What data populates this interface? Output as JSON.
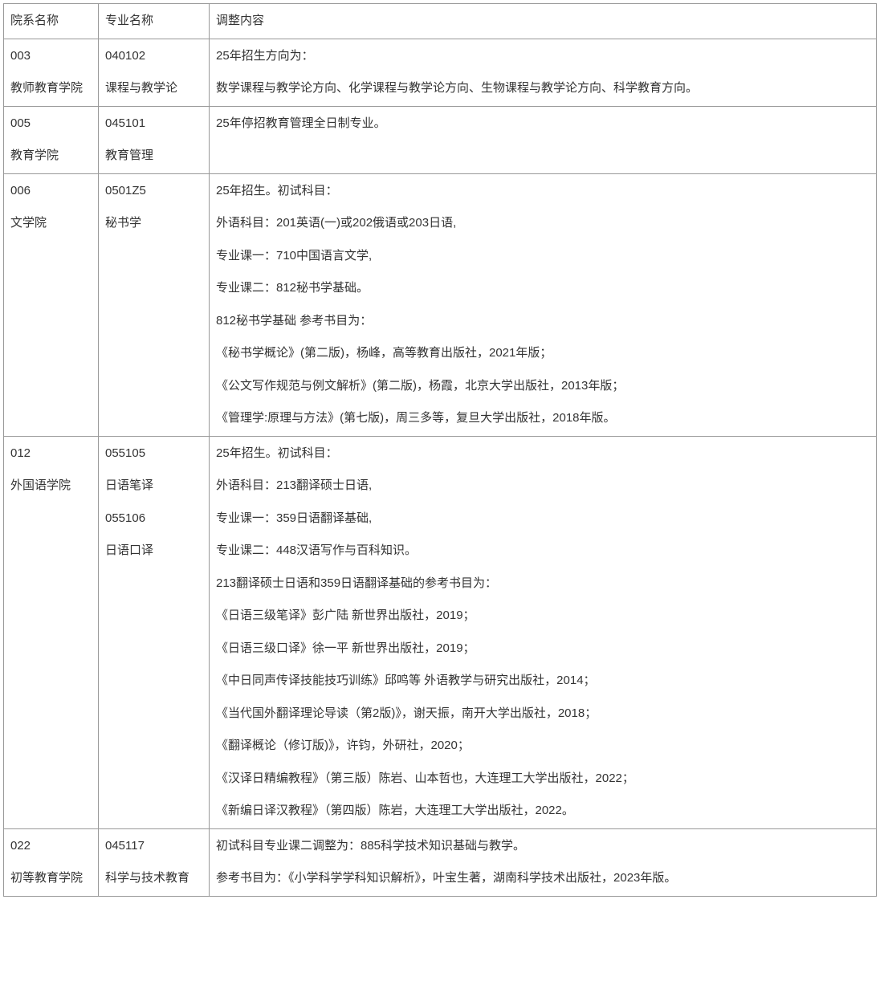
{
  "table": {
    "headers": {
      "dept": "院系名称",
      "major": "专业名称",
      "content": "调整内容"
    },
    "rows": [
      {
        "dept": [
          "003",
          "教师教育学院"
        ],
        "major": [
          "040102",
          "课程与教学论"
        ],
        "content": [
          "25年招生方向为：",
          "数学课程与教学论方向、化学课程与教学论方向、生物课程与教学论方向、科学教育方向。"
        ]
      },
      {
        "dept": [
          "005",
          "教育学院"
        ],
        "major": [
          "045101",
          "教育管理"
        ],
        "content": [
          "25年停招教育管理全日制专业。"
        ]
      },
      {
        "dept": [
          "006",
          "文学院"
        ],
        "major": [
          "0501Z5",
          "秘书学"
        ],
        "content": [
          "25年招生。初试科目：",
          "外语科目：201英语(一)或202俄语或203日语,",
          "专业课一：710中国语言文学,",
          "专业课二：812秘书学基础。",
          "812秘书学基础 参考书目为：",
          "《秘书学概论》(第二版)，杨峰，高等教育出版社，2021年版；",
          "《公文写作规范与例文解析》(第二版)，杨霞，北京大学出版社，2013年版；",
          "《管理学:原理与方法》(第七版)，周三多等，复旦大学出版社，2018年版。"
        ]
      },
      {
        "dept": [
          "012",
          "外国语学院"
        ],
        "major": [
          "055105",
          "日语笔译",
          "055106",
          "日语口译"
        ],
        "content": [
          "25年招生。初试科目：",
          "外语科目：213翻译硕士日语,",
          "专业课一：359日语翻译基础,",
          "专业课二：448汉语写作与百科知识。",
          "213翻译硕士日语和359日语翻译基础的参考书目为：",
          "《日语三级笔译》彭广陆 新世界出版社，2019；",
          "《日语三级口译》徐一平 新世界出版社，2019；",
          "《中日同声传译技能技巧训练》邱鸣等 外语教学与研究出版社，2014；",
          "《当代国外翻译理论导读（第2版)》，谢天振，南开大学出版社，2018；",
          "《翻译概论（修订版)》，许钧，外研社，2020；",
          "《汉译日精编教程》（第三版）陈岩、山本哲也，大连理工大学出版社，2022；",
          "《新编日译汉教程》（第四版）陈岩，大连理工大学出版社，2022。"
        ]
      },
      {
        "dept": [
          "022",
          "初等教育学院"
        ],
        "major": [
          "045117",
          "科学与技术教育"
        ],
        "content": [
          "初试科目专业课二调整为：885科学技术知识基础与教学。",
          "参考书目为：《小学科学学科知识解析》，叶宝生著，湖南科学技术出版社，2023年版。"
        ]
      }
    ]
  },
  "styling": {
    "border_color": "#999999",
    "text_color": "#333333",
    "background_color": "#ffffff",
    "font_size": 15,
    "line_height": 1.5,
    "cell_padding": "10px 8px",
    "col_widths": {
      "dept": 118,
      "major": 138
    }
  }
}
